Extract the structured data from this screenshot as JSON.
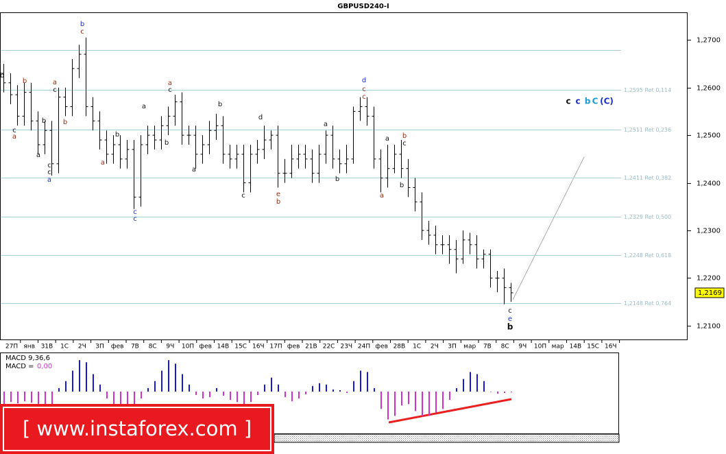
{
  "chart_data": [
    {
      "type": "ohlc",
      "title": "GBPUSD240-I",
      "open": [
        1.263,
        1.261,
        1.2585,
        1.254,
        1.259,
        1.253,
        1.248,
        1.251,
        1.244,
        1.258,
        1.256,
        1.264,
        1.267,
        1.256,
        1.253,
        1.249,
        1.246,
        1.248,
        1.245,
        1.247,
        1.237,
        1.248,
        1.25,
        1.249,
        1.252,
        1.254,
        1.257,
        1.25,
        1.25,
        1.246,
        1.248,
        1.251,
        1.252,
        1.246,
        1.245,
        1.246,
        1.24,
        1.246,
        1.247,
        1.249,
        1.25,
        1.242,
        1.242,
        1.245,
        1.246,
        1.245,
        1.242,
        1.246,
        1.25,
        1.245,
        1.244,
        1.245,
        1.255,
        1.256,
        1.254,
        1.245,
        1.241,
        1.243,
        1.246,
        1.243,
        1.239,
        1.236,
        1.23,
        1.229,
        1.227,
        1.227,
        1.226,
        1.224,
        1.228,
        1.227,
        1.224,
        1.225,
        1.22,
        1.22,
        1.218
      ],
      "high": [
        1.265,
        1.263,
        1.2605,
        1.261,
        1.261,
        1.255,
        1.253,
        1.253,
        1.26,
        1.26,
        1.266,
        1.269,
        1.2705,
        1.258,
        1.255,
        1.251,
        1.25,
        1.25,
        1.249,
        1.249,
        1.25,
        1.252,
        1.252,
        1.254,
        1.256,
        1.2585,
        1.259,
        1.252,
        1.252,
        1.25,
        1.253,
        1.2545,
        1.254,
        1.248,
        1.248,
        1.248,
        1.248,
        1.249,
        1.252,
        1.251,
        1.252,
        1.245,
        1.248,
        1.248,
        1.248,
        1.247,
        1.248,
        1.251,
        1.252,
        1.247,
        1.248,
        1.256,
        1.258,
        1.258,
        1.256,
        1.247,
        1.248,
        1.248,
        1.249,
        1.245,
        1.241,
        1.238,
        1.232,
        1.231,
        1.229,
        1.229,
        1.228,
        1.23,
        1.2295,
        1.229,
        1.226,
        1.226,
        1.2215,
        1.222,
        1.219
      ],
      "low": [
        1.259,
        1.2565,
        1.252,
        1.252,
        1.251,
        1.246,
        1.246,
        1.2415,
        1.242,
        1.254,
        1.254,
        1.262,
        1.254,
        1.251,
        1.247,
        1.244,
        1.244,
        1.243,
        1.243,
        1.2345,
        1.235,
        1.246,
        1.247,
        1.247,
        1.25,
        1.252,
        1.248,
        1.248,
        1.243,
        1.244,
        1.246,
        1.249,
        1.244,
        1.243,
        1.243,
        1.238,
        1.238,
        1.244,
        1.245,
        1.247,
        1.239,
        1.24,
        1.241,
        1.243,
        1.243,
        1.24,
        1.24,
        1.244,
        1.243,
        1.242,
        1.242,
        1.244,
        1.253,
        1.252,
        1.243,
        1.238,
        1.239,
        1.242,
        1.241,
        1.237,
        1.234,
        1.228,
        1.227,
        1.225,
        1.225,
        1.223,
        1.221,
        1.223,
        1.225,
        1.222,
        1.222,
        1.218,
        1.217,
        1.2145,
        1.215
      ],
      "close": [
        1.261,
        1.2585,
        1.254,
        1.259,
        1.253,
        1.248,
        1.251,
        1.244,
        1.258,
        1.256,
        1.264,
        1.267,
        1.256,
        1.253,
        1.249,
        1.246,
        1.248,
        1.245,
        1.247,
        1.237,
        1.248,
        1.25,
        1.249,
        1.252,
        1.254,
        1.257,
        1.25,
        1.25,
        1.246,
        1.248,
        1.251,
        1.252,
        1.246,
        1.245,
        1.246,
        1.24,
        1.246,
        1.247,
        1.249,
        1.25,
        1.242,
        1.242,
        1.245,
        1.246,
        1.245,
        1.242,
        1.246,
        1.25,
        1.245,
        1.244,
        1.245,
        1.255,
        1.256,
        1.254,
        1.245,
        1.241,
        1.243,
        1.246,
        1.243,
        1.239,
        1.236,
        1.23,
        1.229,
        1.227,
        1.227,
        1.226,
        1.224,
        1.228,
        1.227,
        1.224,
        1.225,
        1.22,
        1.22,
        1.218,
        1.2169
      ],
      "color": "#000000",
      "ylim": [
        1.2071,
        1.2758
      ],
      "yticks": [
        {
          "value": 1.21,
          "label": "1,2100"
        },
        {
          "value": 1.22,
          "label": "1,2200"
        },
        {
          "value": 1.23,
          "label": "1,2300"
        },
        {
          "value": 1.24,
          "label": "1,2400"
        },
        {
          "value": 1.25,
          "label": "1,2500"
        },
        {
          "value": 1.26,
          "label": "1,2600"
        },
        {
          "value": 1.27,
          "label": "1,2700"
        }
      ],
      "xtick_labels": [
        "27П",
        "янв",
        "31В",
        "1С",
        "2Ч",
        "3П",
        "фев",
        "7В",
        "8С",
        "9Ч",
        "10П",
        "фев",
        "14В",
        "15С",
        "16Ч",
        "17П",
        "фев",
        "21В",
        "22С",
        "23Ч",
        "24П",
        "фев",
        "28В",
        "1С",
        "2Ч",
        "3П",
        "мар",
        "7В",
        "8С",
        "9Ч",
        "10П",
        "мар",
        "14В",
        "15С",
        "16Ч"
      ],
      "levels": [
        1.2679,
        {
          "value": 1.2595,
          "label": "1,2595 Ret 0,114"
        },
        {
          "value": 1.2511,
          "label": "1,2511 Ret 0,236"
        },
        {
          "value": 1.2411,
          "label": "1,2411 Ret 0,382"
        },
        {
          "value": 1.2329,
          "label": "1,2329 Ret 0,500"
        },
        {
          "value": 1.2248,
          "label": "1,2248 Ret 0,618"
        },
        {
          "value": 1.2148,
          "label": "1,2148 Ret 0,764"
        }
      ],
      "level_color": "#a8d0d8",
      "last_price": {
        "value": 1.2169,
        "label": "1,2169"
      }
    },
    {
      "type": "histogram",
      "title": "MACD 9,36,6",
      "current_label": "MACD =",
      "current": {
        "value": 0,
        "label": "0,00"
      },
      "values": [
        -0.0018,
        -0.0015,
        -0.0017,
        -0.0014,
        -0.0016,
        -0.002,
        -0.0018,
        -0.0022,
        0.0005,
        0.0015,
        0.003,
        0.0045,
        0.0042,
        0.0025,
        0.001,
        -0.001,
        -0.0018,
        -0.002,
        -0.0022,
        -0.0025,
        -0.001,
        0.0005,
        0.0015,
        0.003,
        0.0045,
        0.004,
        0.0025,
        0.001,
        -0.0005,
        -0.001,
        -0.0008,
        0.0005,
        -0.0006,
        -0.0012,
        -0.0015,
        -0.0022,
        -0.0015,
        -0.0005,
        0.001,
        0.002,
        0.001,
        -0.0008,
        -0.0014,
        -0.001,
        -0.0004,
        0.0008,
        0.0012,
        0.001,
        0.0003,
        0.0002,
        -0.0002,
        0.0015,
        0.003,
        0.0028,
        0.0005,
        -0.0025,
        -0.004,
        -0.0035,
        -0.002,
        -0.0018,
        -0.0028,
        -0.0035,
        -0.0035,
        -0.003,
        -0.0025,
        -0.0012,
        0.0005,
        0.0018,
        0.0028,
        0.0025,
        0.0015,
        0.0,
        -0.0003,
        -0.0002,
        -0.0001
      ],
      "ylim": [
        -0.006,
        0.0055
      ],
      "colors": {
        "positive": "#1a1acc",
        "negative": "#cc33cc"
      }
    }
  ],
  "wave_labels": [
    "b",
    "c",
    "a",
    "b",
    "a",
    "b",
    "c",
    "c",
    "a",
    "a",
    "c",
    "b",
    "b",
    "c",
    "a",
    "b",
    "c",
    "c",
    "a",
    "b",
    "a",
    "c",
    "a",
    "b",
    "c",
    "d",
    "e",
    "b",
    "a",
    "b",
    "d",
    "c",
    "c",
    "a",
    "b",
    "c",
    "b",
    "a",
    "c",
    "e",
    "b",
    "c",
    "c",
    "b",
    "C",
    "(C)"
  ],
  "watermark": "[ www.instaforex.com ]"
}
